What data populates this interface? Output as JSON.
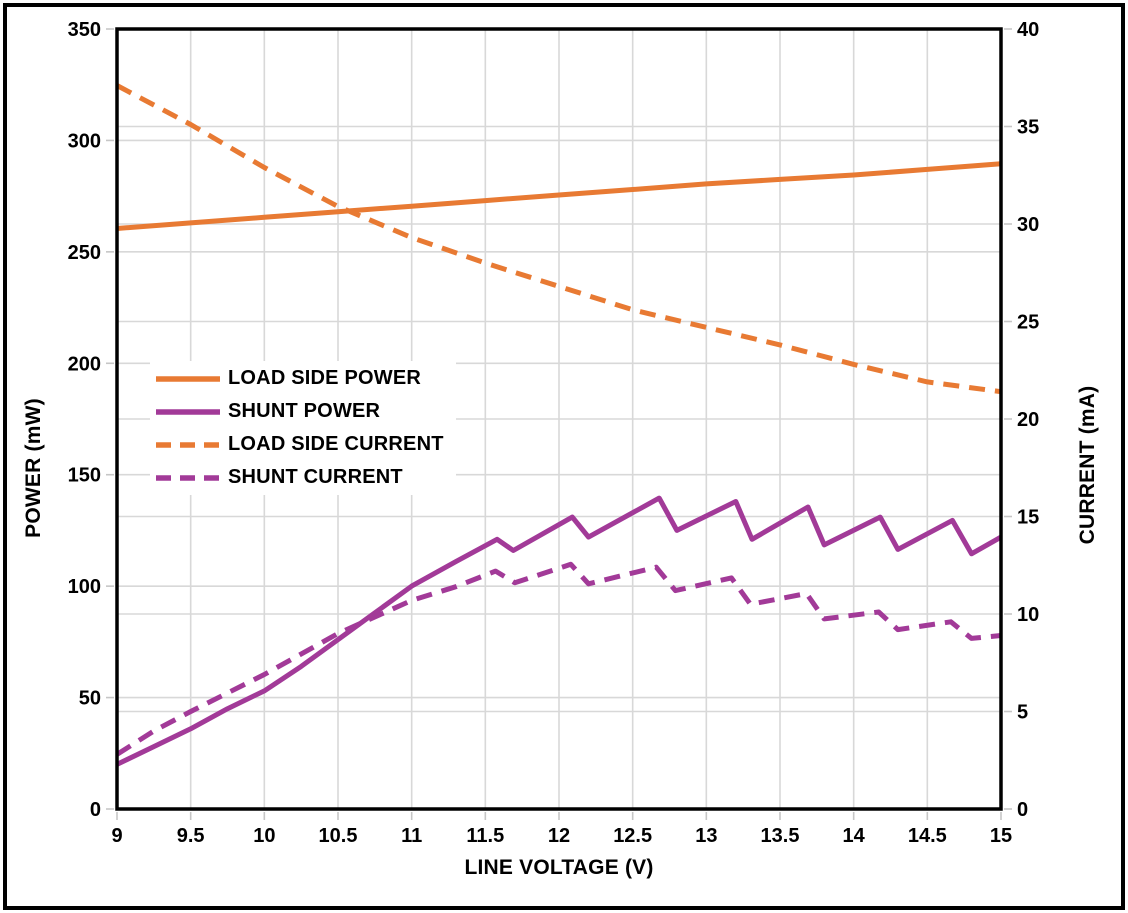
{
  "chart_data": {
    "type": "line",
    "title": "",
    "xlabel": "LINE VOLTAGE (V)",
    "x_axis": {
      "min": 9,
      "max": 15,
      "tick_step": 0.5,
      "tick_labels": [
        "9",
        "9.5",
        "10",
        "10.5",
        "11",
        "11.5",
        "12",
        "12.5",
        "13",
        "13.5",
        "14",
        "14.5",
        "15"
      ]
    },
    "y_axis_left": {
      "label": "POWER (mW)",
      "min": 0,
      "max": 350,
      "tick_step": 50,
      "tick_labels": [
        "0",
        "50",
        "100",
        "150",
        "200",
        "250",
        "300",
        "350"
      ]
    },
    "y_axis_right": {
      "label": "CURRENT (mA)",
      "min": 0,
      "max": 40,
      "tick_step": 5,
      "tick_labels": [
        "0",
        "5",
        "10",
        "15",
        "20",
        "25",
        "30",
        "35",
        "40"
      ]
    },
    "grid": {
      "vertical": true,
      "horizontal_left": true,
      "horizontal_right": true,
      "color": "#D8D8D8"
    },
    "legend_position": "inside-left",
    "colors": {
      "orange": "#E87A33",
      "purple": "#A23A98",
      "axis_border": "#000000"
    },
    "series": [
      {
        "name": "LOAD SIDE POWER",
        "axis": "left",
        "line_style": "solid",
        "color": "#E87A33",
        "points": [
          [
            9,
            260.5
          ],
          [
            9.5,
            263
          ],
          [
            10,
            265.5
          ],
          [
            10.5,
            268
          ],
          [
            11,
            270.5
          ],
          [
            11.5,
            273
          ],
          [
            12,
            275.5
          ],
          [
            12.5,
            278
          ],
          [
            13,
            280.5
          ],
          [
            13.5,
            282.5
          ],
          [
            14,
            284.5
          ],
          [
            14.5,
            287
          ],
          [
            15,
            289.5
          ]
        ]
      },
      {
        "name": "SHUNT POWER",
        "axis": "left",
        "line_style": "solid",
        "color": "#A23A98",
        "points": [
          [
            9,
            20
          ],
          [
            9.25,
            28
          ],
          [
            9.5,
            36
          ],
          [
            9.75,
            45
          ],
          [
            10,
            53
          ],
          [
            10.25,
            64
          ],
          [
            10.5,
            76
          ],
          [
            10.75,
            88
          ],
          [
            11,
            100
          ],
          [
            11.3,
            111
          ],
          [
            11.58,
            121
          ],
          [
            11.69,
            116
          ],
          [
            12.09,
            131
          ],
          [
            12.2,
            122
          ],
          [
            12.68,
            139.5
          ],
          [
            12.8,
            125
          ],
          [
            13.2,
            138
          ],
          [
            13.31,
            121
          ],
          [
            13.69,
            135.5
          ],
          [
            13.8,
            118.5
          ],
          [
            14.18,
            131
          ],
          [
            14.3,
            116.5
          ],
          [
            14.67,
            129.5
          ],
          [
            14.8,
            114.5
          ],
          [
            15,
            122
          ]
        ]
      },
      {
        "name": "LOAD SIDE CURRENT",
        "axis": "right",
        "line_style": "dashed",
        "color": "#E87A33",
        "points": [
          [
            9,
            37.1
          ],
          [
            9.5,
            35.1
          ],
          [
            10,
            32.9
          ],
          [
            10.5,
            30.9
          ],
          [
            11,
            29.3
          ],
          [
            11.5,
            28
          ],
          [
            12,
            26.8
          ],
          [
            12.5,
            25.6
          ],
          [
            13,
            24.7
          ],
          [
            13.5,
            23.8
          ],
          [
            14,
            22.8
          ],
          [
            14.5,
            21.9
          ],
          [
            15,
            21.4
          ]
        ]
      },
      {
        "name": "SHUNT CURRENT",
        "axis": "right",
        "line_style": "dashed",
        "color": "#A23A98",
        "points": [
          [
            9,
            2.8
          ],
          [
            9.25,
            4
          ],
          [
            9.5,
            5
          ],
          [
            10,
            6.9
          ],
          [
            10.5,
            9
          ],
          [
            11,
            10.7
          ],
          [
            11.3,
            11.4
          ],
          [
            11.57,
            12.2
          ],
          [
            11.7,
            11.6
          ],
          [
            12.08,
            12.55
          ],
          [
            12.2,
            11.55
          ],
          [
            12.66,
            12.4
          ],
          [
            12.79,
            11.2
          ],
          [
            13.17,
            11.85
          ],
          [
            13.3,
            10.5
          ],
          [
            13.68,
            11.05
          ],
          [
            13.8,
            9.75
          ],
          [
            14.17,
            10.1
          ],
          [
            14.3,
            9.2
          ],
          [
            14.66,
            9.6
          ],
          [
            14.8,
            8.75
          ],
          [
            15,
            8.9
          ]
        ]
      }
    ]
  }
}
